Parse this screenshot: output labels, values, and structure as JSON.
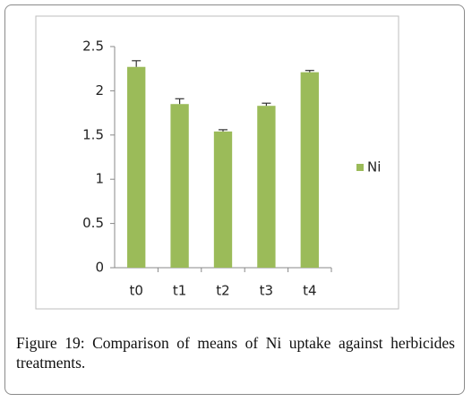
{
  "chart_data": {
    "type": "bar",
    "categories": [
      "t0",
      "t1",
      "t2",
      "t3",
      "t4"
    ],
    "series": [
      {
        "name": "Ni",
        "color": "#9bbb59",
        "values": [
          2.27,
          1.85,
          1.54,
          1.83,
          2.21
        ],
        "errors": [
          0.07,
          0.06,
          0.02,
          0.03,
          0.02
        ]
      }
    ],
    "ylim": [
      0,
      2.5
    ],
    "yticks": [
      0,
      0.5,
      1,
      1.5,
      2,
      2.5
    ],
    "grid": false,
    "legend": "right",
    "caption": "Figure 19: Comparison of means of Ni uptake against herbicides treatments."
  }
}
